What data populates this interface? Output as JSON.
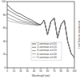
{
  "chart_data": {
    "type": "line",
    "x_label": "Wavelength (nm)",
    "y_label": "Normalized intensity (a.u.)",
    "x": [
      0,
      5,
      10,
      15,
      20,
      25,
      30,
      35,
      40,
      45,
      50,
      55,
      60,
      65,
      70,
      75,
      80,
      85,
      90,
      95,
      100
    ],
    "series": [
      {
        "name": "1 Lorentzian at 0.05",
        "color": "#000000",
        "values": [
          95,
          90,
          86,
          83,
          81,
          78,
          75,
          73,
          70,
          67,
          65,
          72,
          50,
          70,
          75,
          45,
          65,
          72,
          40,
          22,
          15
        ]
      },
      {
        "name": "2 Lorentzian at 0.10",
        "color": "#333333",
        "values": [
          88,
          85,
          82,
          79,
          77,
          74,
          72,
          70,
          68,
          66,
          65,
          72,
          50,
          70,
          75,
          45,
          65,
          72,
          40,
          22,
          15
        ]
      },
      {
        "name": "3 Lorentzian at 0.20",
        "color": "#555555",
        "values": [
          82,
          79,
          77,
          74,
          72,
          70,
          69,
          68,
          66,
          65,
          65,
          72,
          50,
          70,
          75,
          45,
          65,
          72,
          40,
          22,
          15
        ]
      },
      {
        "name": "4 Lorentzian at 0.30",
        "color": "#777777",
        "values": [
          76,
          74,
          72,
          70,
          69,
          68,
          67,
          66,
          65,
          64,
          65,
          72,
          50,
          70,
          75,
          45,
          65,
          72,
          40,
          22,
          15
        ]
      },
      {
        "name": "5 Lorentzian at 0.40",
        "color": "#999999",
        "values": [
          72,
          70,
          69,
          68,
          67,
          66,
          66,
          65,
          65,
          64,
          65,
          72,
          50,
          70,
          75,
          45,
          65,
          72,
          40,
          22,
          15
        ]
      }
    ],
    "xlim": [
      0,
      100
    ],
    "ylim": [
      0,
      100
    ],
    "xticks": [
      0,
      10,
      20,
      30,
      40,
      50,
      60,
      70,
      80,
      90,
      100
    ],
    "yticks": [
      0,
      20,
      40,
      60,
      80,
      100
    ],
    "grid": false,
    "legend": "lower center"
  }
}
